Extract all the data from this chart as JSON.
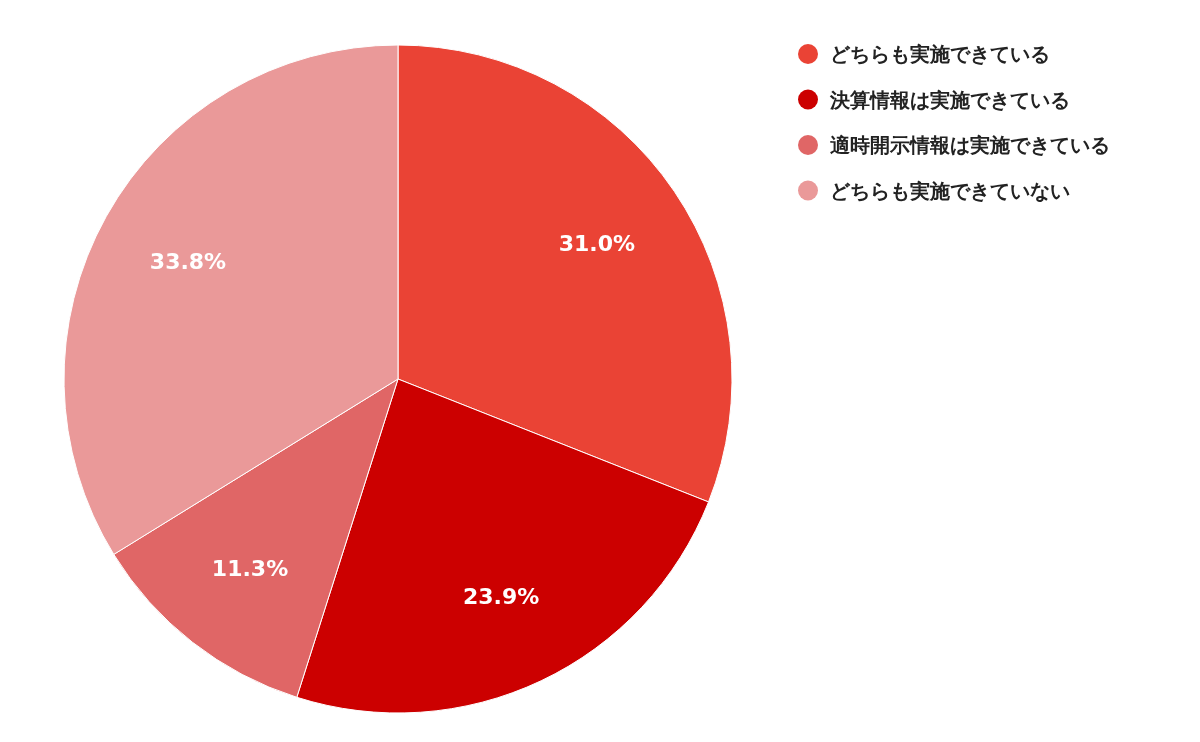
{
  "chart_data": {
    "type": "pie",
    "categories": [
      "どちらも実施できている",
      "決算情報は実施できている",
      "適時開示情報は実施できている",
      "どちらも実施できていない"
    ],
    "values": [
      31.0,
      23.9,
      11.3,
      33.8
    ],
    "colors": [
      "#ea4335",
      "#cc0000",
      "#e06666",
      "#ea9999"
    ],
    "value_labels": [
      "31.0%",
      "23.9%",
      "11.3%",
      "33.8%"
    ],
    "legend": "top right"
  }
}
